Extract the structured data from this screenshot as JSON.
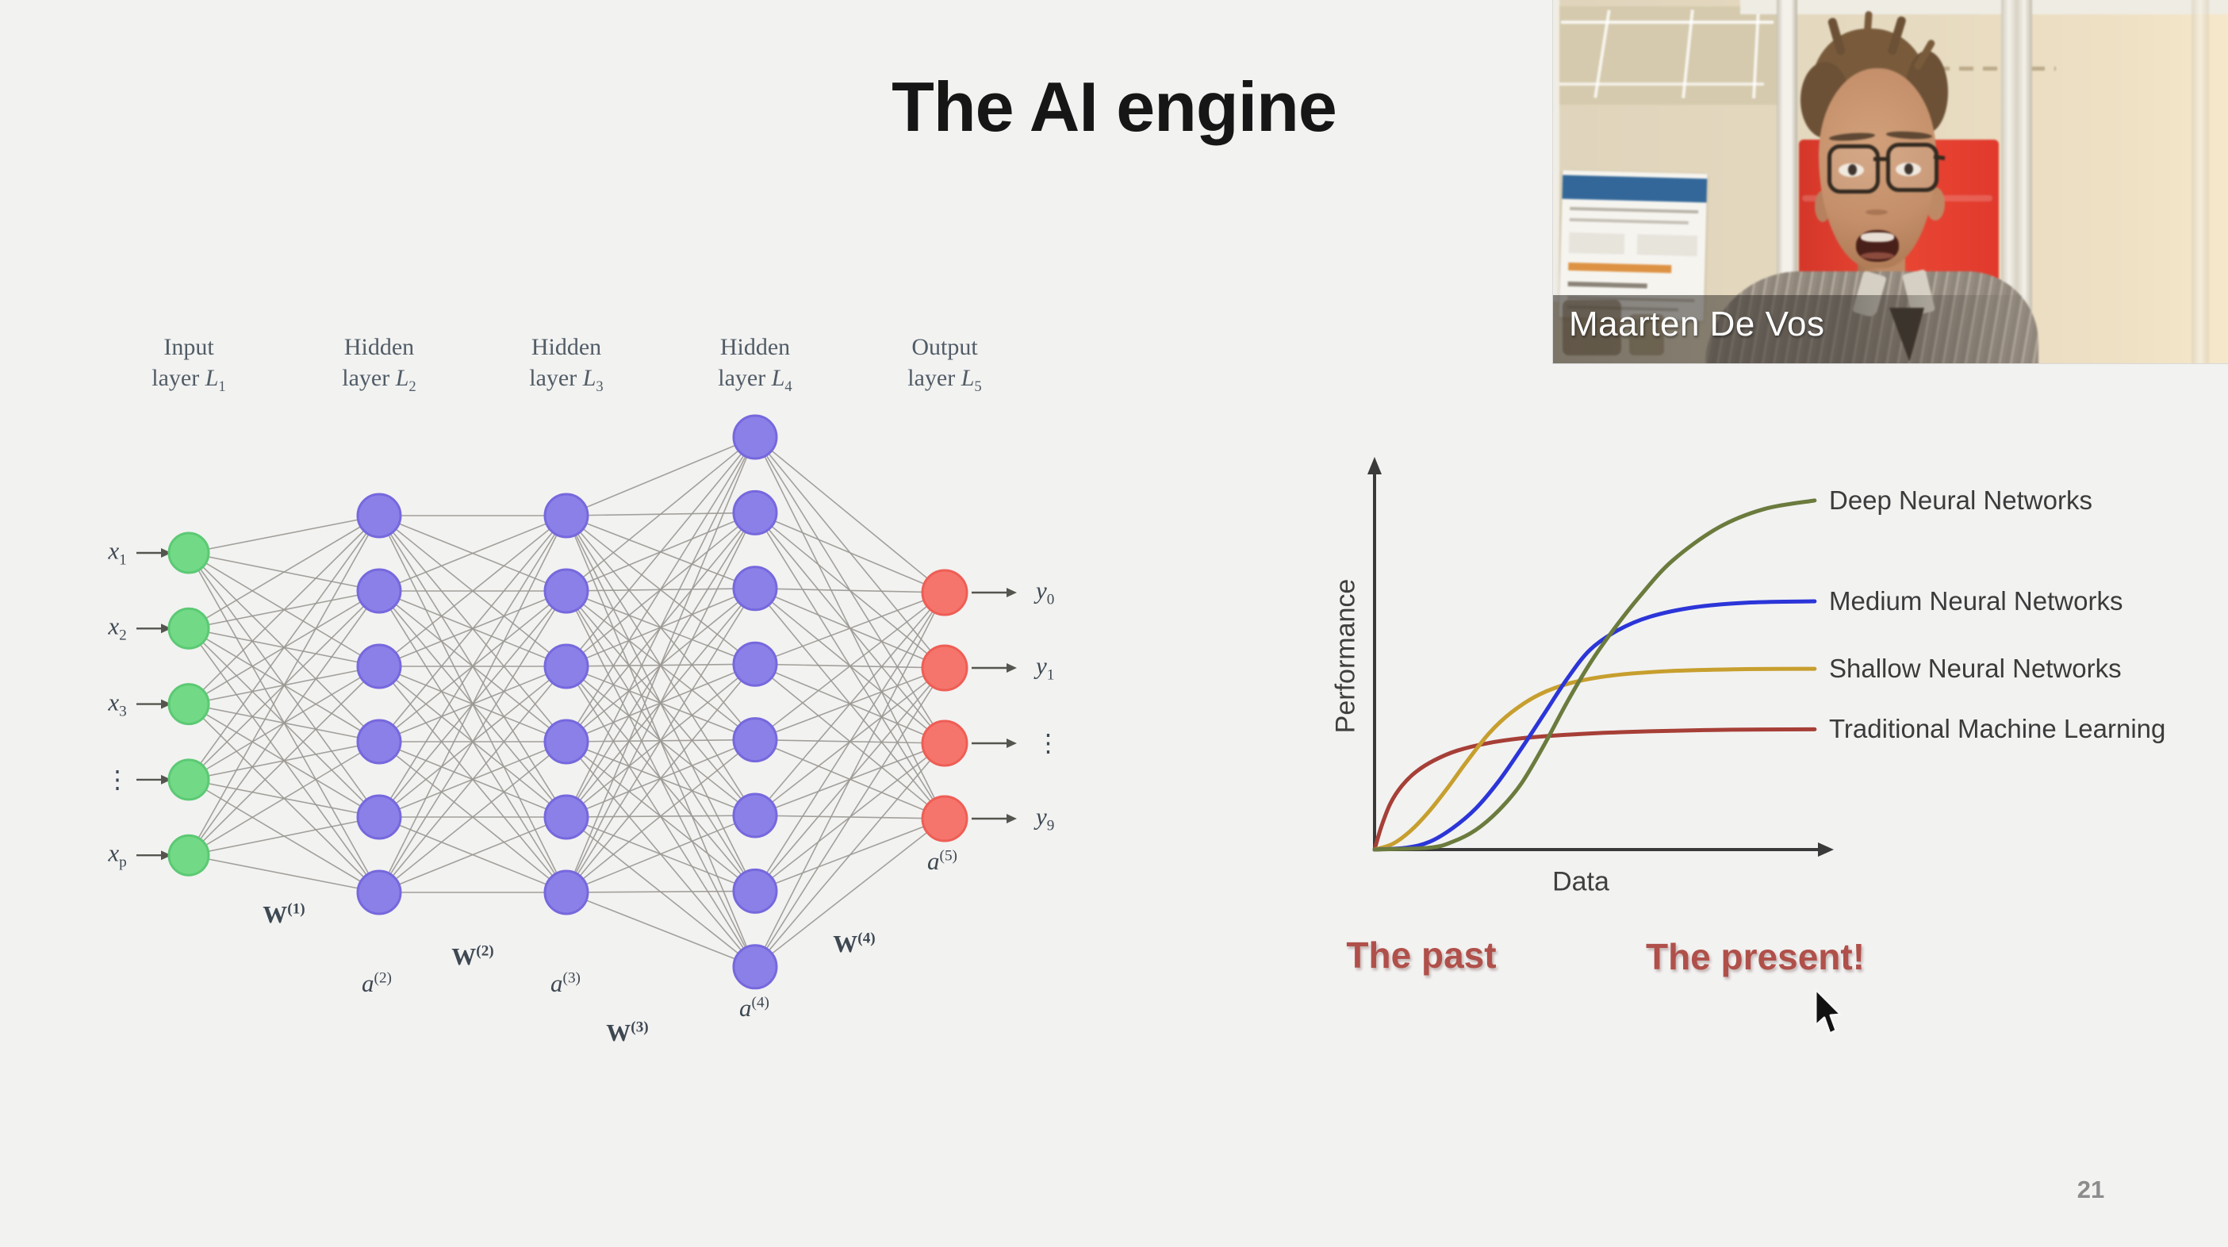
{
  "slide": {
    "title": "The AI engine",
    "page_number": "21",
    "text_red": "#b0504a",
    "background": "#f2f2f1"
  },
  "network": {
    "layers": [
      {
        "line1": "Input",
        "line2": "layer",
        "symbol": "L",
        "subscript": "1",
        "count": 5,
        "fill": "#72da86",
        "stroke": "#5cc974",
        "role": "input"
      },
      {
        "line1": "Hidden",
        "line2": "layer",
        "symbol": "L",
        "subscript": "2",
        "count": 6,
        "fill": "#8b80e8",
        "stroke": "#7668dd",
        "role": "hidden"
      },
      {
        "line1": "Hidden",
        "line2": "layer",
        "symbol": "L",
        "subscript": "3",
        "count": 6,
        "fill": "#8b80e8",
        "stroke": "#7668dd",
        "role": "hidden"
      },
      {
        "line1": "Hidden",
        "line2": "layer",
        "symbol": "L",
        "subscript": "4",
        "count": 8,
        "fill": "#8b80e8",
        "stroke": "#7668dd",
        "role": "hidden"
      },
      {
        "line1": "Output",
        "line2": "layer",
        "symbol": "L",
        "subscript": "5",
        "count": 4,
        "fill": "#f5756c",
        "stroke": "#ee5e55",
        "role": "output"
      }
    ],
    "input_labels": [
      {
        "base": "x",
        "sub": "1"
      },
      {
        "base": "x",
        "sub": "2"
      },
      {
        "base": "x",
        "sub": "3"
      },
      {
        "dots": "⋮"
      },
      {
        "base": "x",
        "sub": "p"
      }
    ],
    "output_labels": [
      {
        "base": "y",
        "sub": "0"
      },
      {
        "base": "y",
        "sub": "1"
      },
      {
        "dots": "⋮"
      },
      {
        "base": "y",
        "sub": "9"
      }
    ],
    "weight_labels": [
      {
        "base": "W",
        "sup": "(1)"
      },
      {
        "base": "W",
        "sup": "(2)"
      },
      {
        "base": "W",
        "sup": "(3)"
      },
      {
        "base": "W",
        "sup": "(4)"
      }
    ],
    "activation_labels": [
      {
        "base": "a",
        "sup": "(2)"
      },
      {
        "base": "a",
        "sup": "(3)"
      },
      {
        "base": "a",
        "sup": "(4)"
      },
      {
        "base": "a",
        "sup": "(5)"
      }
    ],
    "edge_color": "#9b9892"
  },
  "chart_data": {
    "type": "line",
    "title": "",
    "xlabel": "Data",
    "ylabel": "Performance",
    "x_range": [
      0,
      1
    ],
    "y_range": [
      0,
      1
    ],
    "grid": false,
    "legend_position": "right of curve ends",
    "axis_color": "#3a3a3a",
    "legend_text_color": "#3b3b3b",
    "series": [
      {
        "name": "Deep Neural Networks",
        "color": "#6b7b3d",
        "x": [
          0,
          0.12,
          0.17,
          0.22,
          0.27,
          0.32,
          0.37,
          0.42,
          0.47,
          0.52,
          0.58,
          0.65,
          0.75,
          0.85,
          0.96
        ],
        "y": [
          0,
          0.005,
          0.02,
          0.05,
          0.1,
          0.17,
          0.27,
          0.38,
          0.48,
          0.565,
          0.655,
          0.745,
          0.83,
          0.878,
          0.9
        ]
      },
      {
        "name": "Medium Neural Networks",
        "color": "#2b35d8",
        "x": [
          0,
          0.07,
          0.12,
          0.17,
          0.22,
          0.27,
          0.32,
          0.37,
          0.42,
          0.47,
          0.53,
          0.6,
          0.7,
          0.82,
          0.96
        ],
        "y": [
          0,
          0.005,
          0.02,
          0.055,
          0.105,
          0.175,
          0.26,
          0.35,
          0.44,
          0.515,
          0.565,
          0.6,
          0.625,
          0.637,
          0.64
        ]
      },
      {
        "name": "Shallow Neural Networks",
        "color": "#c79f2e",
        "x": [
          0,
          0.04,
          0.08,
          0.12,
          0.16,
          0.2,
          0.25,
          0.3,
          0.36,
          0.43,
          0.52,
          0.64,
          0.8,
          0.96
        ],
        "y": [
          0,
          0.015,
          0.05,
          0.1,
          0.16,
          0.225,
          0.3,
          0.355,
          0.4,
          0.43,
          0.449,
          0.46,
          0.465,
          0.466
        ]
      },
      {
        "name": "Traditional Machine Learning",
        "color": "#a63f37",
        "x": [
          0,
          0.015,
          0.035,
          0.06,
          0.09,
          0.13,
          0.18,
          0.25,
          0.33,
          0.45,
          0.6,
          0.78,
          0.96
        ],
        "y": [
          0,
          0.06,
          0.12,
          0.165,
          0.2,
          0.23,
          0.255,
          0.275,
          0.288,
          0.298,
          0.305,
          0.309,
          0.31
        ]
      }
    ],
    "annotations": [
      "The past",
      "The present!"
    ]
  },
  "webcam": {
    "name": "Maarten De Vos",
    "red_wall": "#e6392b",
    "poster_header": "#31679b"
  }
}
